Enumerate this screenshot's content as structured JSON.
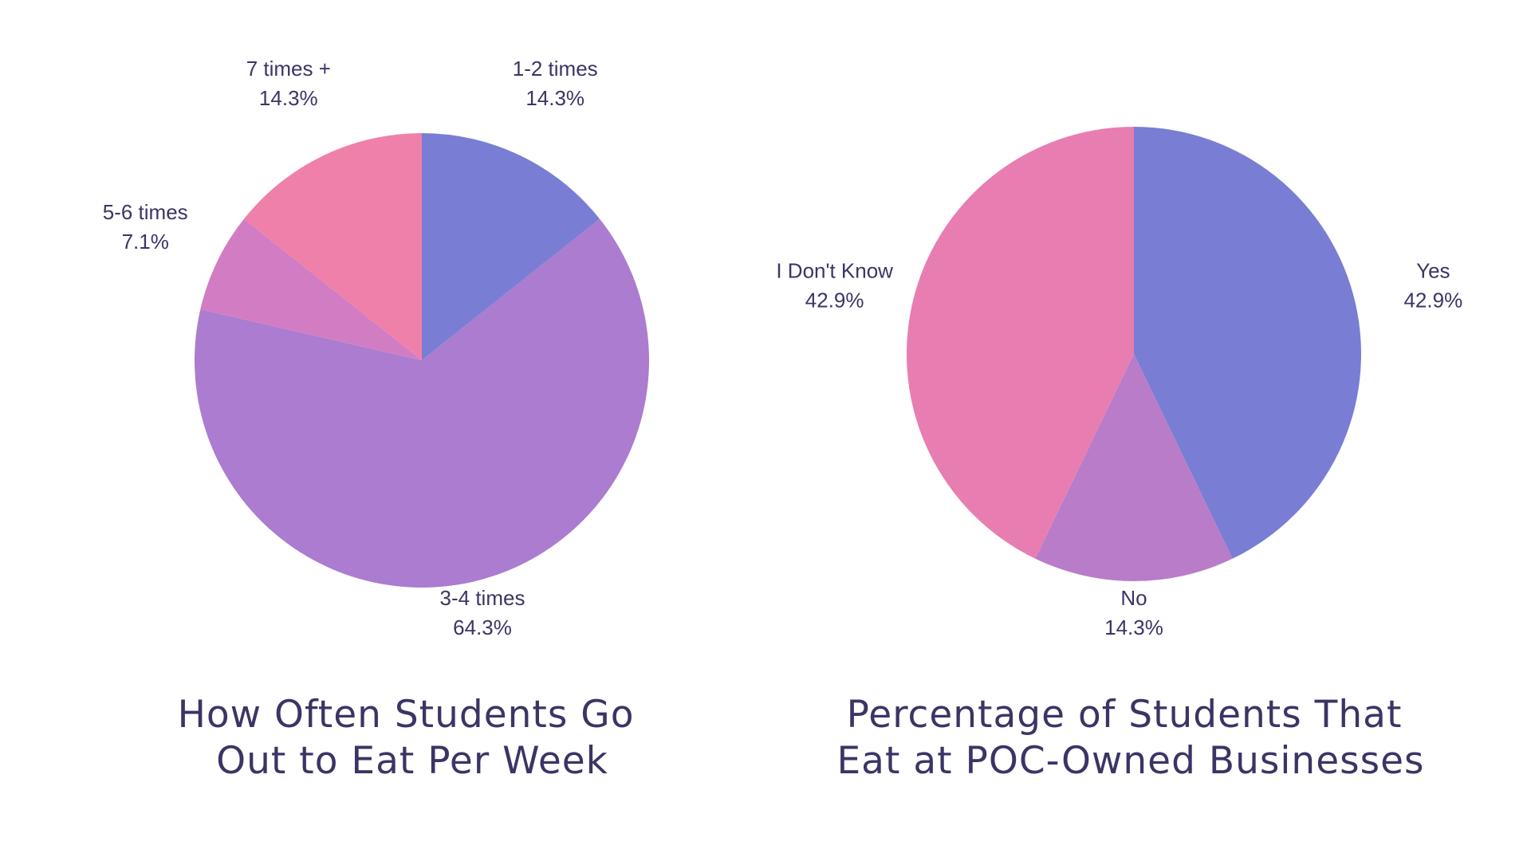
{
  "chart_data": [
    {
      "type": "pie",
      "title_lines": [
        "How Often Students Go",
        "Out to Eat Per Week"
      ],
      "slices": [
        {
          "label": "1-2 times",
          "value": 14.3,
          "value_label": "14.3%",
          "color": "#7a7dd4"
        },
        {
          "label": "3-4 times",
          "value": 64.3,
          "value_label": "64.3%",
          "color": "#ab7ccf"
        },
        {
          "label": "5-6 times",
          "value": 7.1,
          "value_label": "7.1%",
          "color": "#d27cc4"
        },
        {
          "label": "7 times +",
          "value": 14.3,
          "value_label": "14.3%",
          "color": "#ef80aa"
        }
      ],
      "start_angle_deg": 0,
      "direction": "clockwise"
    },
    {
      "type": "pie",
      "title_lines": [
        "Percentage of Students That",
        "Eat at POC-Owned Businesses"
      ],
      "slices": [
        {
          "label": "Yes",
          "value": 42.9,
          "value_label": "42.9%",
          "color": "#7a7dd4"
        },
        {
          "label": "No",
          "value": 14.3,
          "value_label": "14.3%",
          "color": "#b87cc9"
        },
        {
          "label": "I Don't Know",
          "value": 42.9,
          "value_label": "42.9%",
          "color": "#e87db2"
        }
      ],
      "start_angle_deg": 0,
      "direction": "clockwise"
    }
  ]
}
